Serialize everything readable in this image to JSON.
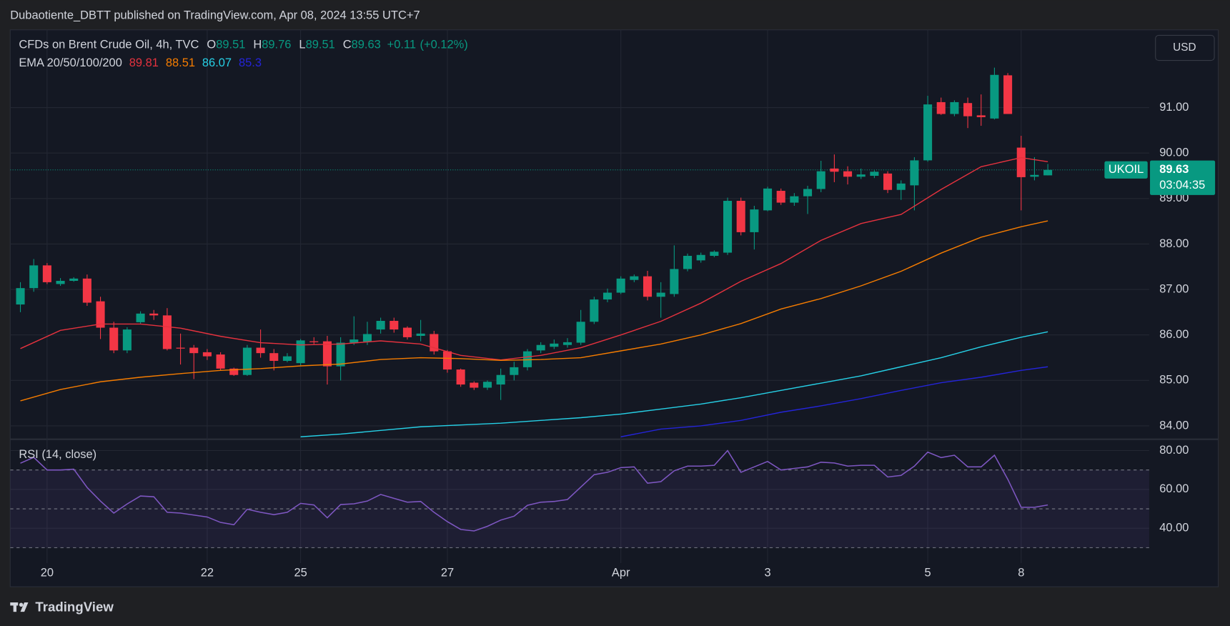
{
  "header": "Dubaotiente_DBTT published on TradingView.com, Apr 08, 2024 13:55 UTC+7",
  "footer_brand": "TradingView",
  "chart_data": [
    {
      "type": "candlestick",
      "title": "CFDs on Brent Crude Oil, 4h, TVC",
      "ohlc_labels": [
        "O",
        "H",
        "L",
        "C"
      ],
      "change": "+0.11",
      "change_pct": "(+0.12%)",
      "symbol": "UKOIL",
      "countdown": "03:04:35",
      "currency": "USD",
      "categories": [
        null,
        null,
        "20",
        null,
        null,
        null,
        null,
        null,
        null,
        null,
        null,
        null,
        null,
        null,
        "22",
        null,
        null,
        null,
        null,
        null,
        null,
        "25",
        null,
        null,
        null,
        null,
        null,
        null,
        null,
        null,
        null,
        null,
        "27",
        null,
        null,
        null,
        null,
        null,
        null,
        null,
        null,
        null,
        null,
        null,
        null,
        "Apr",
        null,
        null,
        null,
        null,
        null,
        null,
        null,
        null,
        null,
        null,
        "3",
        null,
        null,
        null,
        null,
        null,
        null,
        null,
        null,
        null,
        null,
        null,
        "5",
        null,
        null,
        null,
        null,
        null,
        null,
        "8",
        null,
        null
      ],
      "open": [
        86.67,
        87.03,
        87.53,
        87.12,
        87.19,
        87.24,
        86.74,
        86.16,
        85.66,
        86.28,
        86.47,
        86.43,
        85.72,
        85.72,
        85.62,
        85.57,
        85.26,
        85.12,
        85.72,
        85.6,
        85.43,
        85.38,
        85.86,
        85.86,
        85.31,
        85.83,
        85.85,
        86.12,
        86.31,
        86.16,
        85.98,
        86.02,
        85.64,
        85.24,
        84.95,
        84.84,
        84.91,
        85.12,
        85.29,
        85.66,
        85.74,
        85.78,
        85.83,
        86.29,
        86.78,
        86.93,
        87.21,
        87.29,
        86.84,
        86.9,
        87.45,
        87.64,
        87.74,
        87.81,
        88.95,
        88.26,
        88.74,
        89.17,
        88.91,
        89.05,
        89.21,
        89.66,
        89.6,
        89.48,
        89.5,
        89.55,
        89.19,
        89.29,
        89.84,
        91.12,
        90.86,
        91.1,
        90.83,
        90.76,
        91.71,
        90.12,
        89.48,
        89.51
      ],
      "high": [
        87.16,
        87.67,
        87.58,
        87.25,
        87.27,
        87.33,
        86.84,
        86.29,
        86.17,
        86.52,
        86.55,
        86.59,
        86.03,
        85.78,
        85.69,
        85.62,
        85.28,
        85.78,
        86.12,
        85.69,
        85.6,
        85.91,
        85.95,
        85.98,
        85.95,
        86.41,
        86.29,
        86.38,
        86.38,
        86.19,
        86.33,
        86.09,
        85.67,
        85.26,
        84.98,
        85.0,
        85.26,
        85.41,
        85.69,
        85.84,
        85.9,
        85.93,
        86.55,
        86.84,
        87.02,
        87.29,
        87.33,
        87.41,
        87.16,
        87.97,
        87.79,
        87.81,
        87.86,
        89.02,
        89.02,
        88.84,
        89.26,
        89.22,
        89.12,
        89.28,
        89.83,
        89.97,
        89.71,
        89.66,
        89.62,
        89.6,
        89.4,
        89.91,
        91.26,
        91.22,
        91.16,
        91.22,
        91.29,
        91.88,
        91.76,
        90.38,
        89.91,
        89.76
      ],
      "low": [
        86.5,
        86.95,
        87.12,
        87.08,
        87.17,
        86.64,
        85.91,
        85.6,
        85.6,
        86.25,
        86.33,
        85.66,
        85.35,
        85.03,
        85.45,
        85.22,
        85.1,
        85.1,
        85.5,
        85.22,
        85.4,
        85.33,
        85.8,
        84.91,
        85.0,
        85.78,
        85.78,
        86.03,
        86.05,
        85.9,
        85.86,
        85.57,
        85.17,
        84.86,
        84.79,
        84.79,
        84.57,
        85.0,
        85.22,
        85.6,
        85.69,
        85.72,
        85.78,
        86.24,
        86.72,
        86.9,
        87.16,
        86.76,
        86.38,
        86.84,
        87.4,
        87.59,
        87.71,
        87.76,
        88.19,
        87.88,
        88.72,
        88.86,
        88.84,
        88.66,
        89.14,
        89.36,
        89.31,
        89.43,
        89.45,
        89.12,
        88.97,
        88.74,
        89.81,
        90.84,
        90.81,
        90.55,
        90.6,
        90.74,
        90.86,
        88.74,
        89.4,
        89.51
      ],
      "close": [
        87.03,
        87.53,
        87.16,
        87.19,
        87.24,
        86.71,
        86.16,
        85.66,
        86.12,
        86.47,
        86.43,
        85.69,
        85.7,
        85.6,
        85.53,
        85.26,
        85.12,
        85.72,
        85.6,
        85.43,
        85.53,
        85.88,
        85.84,
        85.31,
        85.83,
        85.9,
        86.02,
        86.31,
        86.12,
        85.95,
        86.03,
        85.64,
        85.24,
        84.91,
        84.84,
        84.97,
        85.12,
        85.29,
        85.64,
        85.78,
        85.81,
        85.84,
        86.29,
        86.78,
        86.93,
        87.24,
        87.29,
        86.84,
        86.93,
        87.45,
        87.74,
        87.76,
        87.83,
        88.95,
        88.26,
        88.76,
        89.22,
        88.91,
        89.05,
        89.21,
        89.6,
        89.59,
        89.48,
        89.53,
        89.59,
        89.19,
        89.33,
        89.84,
        91.07,
        90.86,
        91.12,
        90.81,
        90.79,
        91.72,
        90.86,
        89.47,
        89.52,
        89.63
      ],
      "up_color": "#089981",
      "down_color": "#f23645",
      "indicator": "EMA 20/50/100/200",
      "series": [
        {
          "color": "#e5323e",
          "x": [
            0,
            3,
            6,
            9,
            12,
            15,
            18,
            21,
            24,
            27,
            30,
            33,
            36,
            39,
            42,
            45,
            48,
            51,
            54,
            57,
            60,
            63,
            66,
            69,
            72,
            75,
            77
          ],
          "values": [
            85.7,
            86.1,
            86.24,
            86.24,
            86.15,
            85.97,
            85.83,
            85.78,
            85.8,
            85.87,
            85.8,
            85.55,
            85.45,
            85.55,
            85.72,
            86.0,
            86.3,
            86.7,
            87.18,
            87.57,
            88.08,
            88.45,
            88.65,
            89.2,
            89.7,
            89.9,
            89.81
          ]
        },
        {
          "color": "#f57c00",
          "x": [
            0,
            3,
            6,
            9,
            12,
            15,
            18,
            21,
            24,
            27,
            30,
            33,
            36,
            39,
            42,
            45,
            48,
            51,
            54,
            57,
            60,
            63,
            66,
            69,
            72,
            75,
            77
          ],
          "values": [
            84.55,
            84.8,
            84.97,
            85.07,
            85.15,
            85.22,
            85.26,
            85.32,
            85.36,
            85.46,
            85.5,
            85.48,
            85.44,
            85.46,
            85.5,
            85.65,
            85.8,
            86.0,
            86.25,
            86.57,
            86.8,
            87.08,
            87.4,
            87.8,
            88.15,
            88.38,
            88.51
          ]
        },
        {
          "color": "#26d0e6",
          "x": [
            21,
            24,
            27,
            30,
            33,
            36,
            39,
            42,
            45,
            48,
            51,
            54,
            57,
            60,
            63,
            66,
            69,
            72,
            75,
            77
          ],
          "values": [
            83.76,
            83.82,
            83.9,
            83.98,
            84.02,
            84.06,
            84.12,
            84.18,
            84.26,
            84.37,
            84.48,
            84.62,
            84.78,
            84.94,
            85.1,
            85.3,
            85.5,
            85.74,
            85.95,
            86.07
          ]
        },
        {
          "color": "#2424d8",
          "x": [
            45,
            48,
            51,
            54,
            57,
            60,
            63,
            66,
            69,
            72,
            75,
            77
          ],
          "values": [
            83.76,
            83.93,
            84.0,
            84.12,
            84.3,
            84.44,
            84.6,
            84.78,
            84.95,
            85.07,
            85.22,
            85.3
          ]
        }
      ],
      "ylim": [
        83.74,
        92.71
      ],
      "yticks": [
        {
          "value": 84,
          "label": "84.00"
        },
        {
          "value": 85,
          "label": "85.00"
        },
        {
          "value": 86,
          "label": "86.00"
        },
        {
          "value": 87,
          "label": "87.00"
        },
        {
          "value": 88,
          "label": "88.00"
        },
        {
          "value": 89,
          "label": "89.00"
        },
        {
          "value": 90,
          "label": "90.00"
        },
        {
          "value": 91,
          "label": "91.00"
        }
      ],
      "grid": true
    },
    {
      "type": "line",
      "title": "RSI (14, close)",
      "color": "#7e57c2",
      "values": [
        73.5,
        76.5,
        70,
        70,
        70.4,
        61,
        54,
        47.8,
        52.5,
        56.6,
        56.2,
        48.2,
        47.8,
        46.8,
        45.8,
        43,
        41.8,
        49.8,
        48.2,
        47,
        48.2,
        52.8,
        52,
        45.4,
        52.2,
        52.6,
        54,
        57.4,
        55.4,
        53.4,
        53.8,
        48.2,
        43.4,
        39.4,
        38.6,
        41,
        44.2,
        46.2,
        51.8,
        53.4,
        53.8,
        54.8,
        61.2,
        67.6,
        68.8,
        71.2,
        71.6,
        63.2,
        64,
        69.6,
        72,
        72,
        72.4,
        80,
        68.8,
        71.6,
        74.4,
        70,
        70.8,
        71.6,
        74,
        73.6,
        72,
        72.4,
        72.4,
        66.4,
        67.2,
        72,
        79.2,
        76.4,
        77.6,
        71.6,
        71.6,
        77.6,
        65.2,
        50.8,
        50.8,
        52
      ],
      "levels": [
        30,
        50,
        70
      ],
      "ylim": [
        22,
        85
      ],
      "yticks": [
        {
          "value": 40,
          "label": "40.00"
        },
        {
          "value": 60,
          "label": "60.00"
        },
        {
          "value": 80,
          "label": "80.00"
        }
      ],
      "grid": true
    }
  ]
}
